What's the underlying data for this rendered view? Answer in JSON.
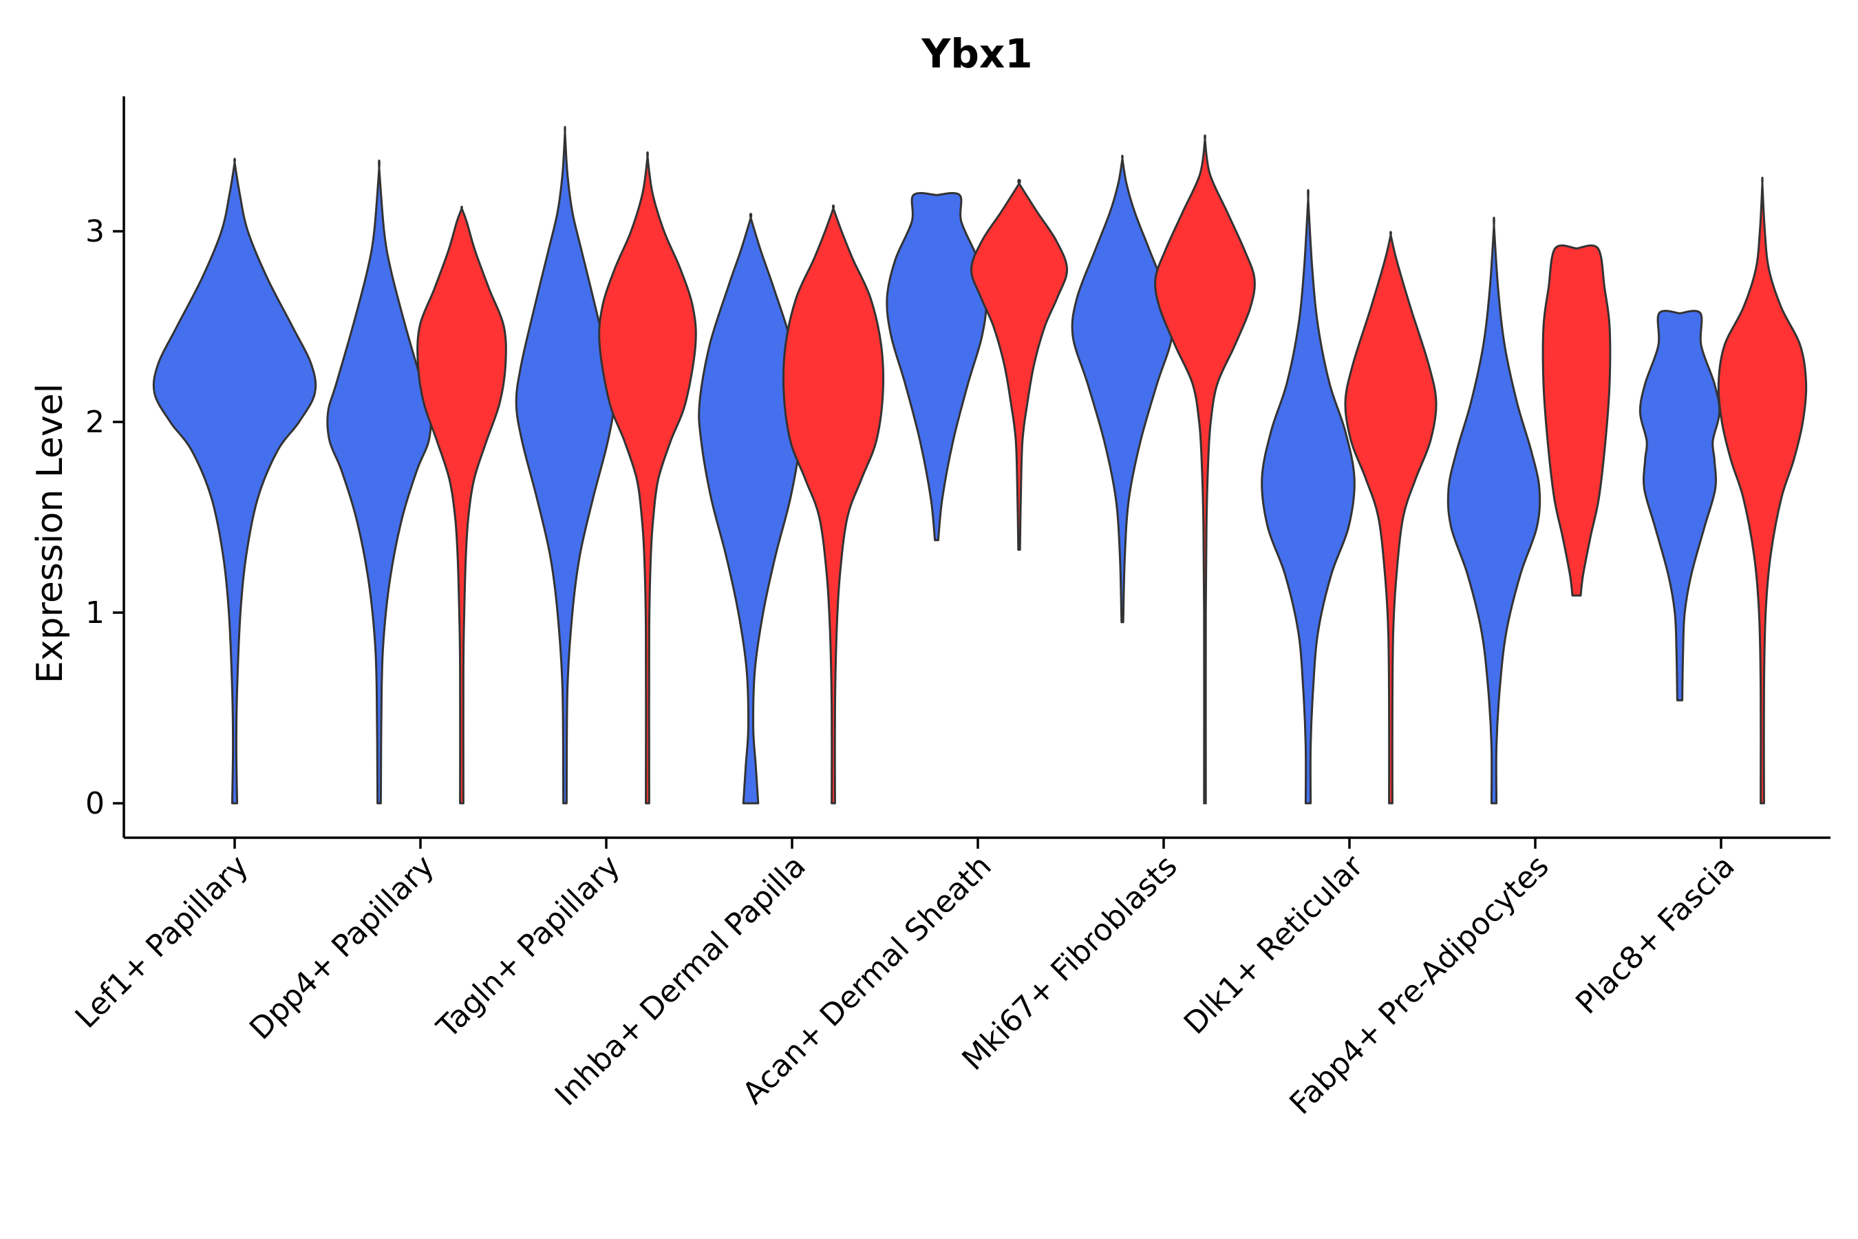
{
  "chart_data": {
    "type": "violin",
    "title": "Ybx1",
    "xlabel": "",
    "ylabel": "Expression Level",
    "ylim": [
      -0.18,
      3.7
    ],
    "yticks": [
      0,
      1,
      2,
      3
    ],
    "ytick_labels": [
      "0",
      "1",
      "2",
      "3"
    ],
    "categories": [
      "Lef1+ Papillary",
      "Dpp4+ Papillary",
      "Tagln+ Papillary",
      "Inhba+ Dermal Papilla",
      "Acan+ Dermal Sheath",
      "Mki67+ Fibroblasts",
      "Dlk1+ Reticular",
      "Fabp4+ Pre-Adipocytes",
      "Plac8+ Fascia"
    ],
    "series": [
      {
        "name": "group-blue",
        "color": "#4470ee",
        "violins": [
          {
            "category": 0,
            "min": 0.0,
            "max": 3.36,
            "profile": [
              [
                0.0,
                0.03
              ],
              [
                0.3,
                0.02
              ],
              [
                0.6,
                0.03
              ],
              [
                1.0,
                0.07
              ],
              [
                1.3,
                0.14
              ],
              [
                1.6,
                0.28
              ],
              [
                1.85,
                0.52
              ],
              [
                2.0,
                0.78
              ],
              [
                2.15,
                0.97
              ],
              [
                2.3,
                0.93
              ],
              [
                2.5,
                0.7
              ],
              [
                2.75,
                0.4
              ],
              [
                3.0,
                0.16
              ],
              [
                3.2,
                0.06
              ],
              [
                3.36,
                0.0
              ]
            ]
          },
          {
            "category": 1,
            "min": 0.0,
            "max": 3.33,
            "profile": [
              [
                0.0,
                0.02
              ],
              [
                0.6,
                0.03
              ],
              [
                0.9,
                0.06
              ],
              [
                1.2,
                0.14
              ],
              [
                1.5,
                0.28
              ],
              [
                1.75,
                0.46
              ],
              [
                1.9,
                0.6
              ],
              [
                2.05,
                0.62
              ],
              [
                2.2,
                0.52
              ],
              [
                2.5,
                0.32
              ],
              [
                2.8,
                0.14
              ],
              [
                3.0,
                0.06
              ],
              [
                3.33,
                0.0
              ]
            ]
          },
          {
            "category": 2,
            "min": 0.0,
            "max": 3.52,
            "profile": [
              [
                0.0,
                0.02
              ],
              [
                0.6,
                0.03
              ],
              [
                1.0,
                0.09
              ],
              [
                1.3,
                0.18
              ],
              [
                1.6,
                0.34
              ],
              [
                1.9,
                0.52
              ],
              [
                2.1,
                0.59
              ],
              [
                2.3,
                0.53
              ],
              [
                2.6,
                0.37
              ],
              [
                2.9,
                0.2
              ],
              [
                3.1,
                0.09
              ],
              [
                3.3,
                0.03
              ],
              [
                3.52,
                0.0
              ]
            ]
          },
          {
            "category": 3,
            "min": 0.0,
            "max": 3.07,
            "profile": [
              [
                0.0,
                0.09
              ],
              [
                0.2,
                0.06
              ],
              [
                0.4,
                0.03
              ],
              [
                0.7,
                0.05
              ],
              [
                1.0,
                0.15
              ],
              [
                1.3,
                0.3
              ],
              [
                1.6,
                0.48
              ],
              [
                1.9,
                0.6
              ],
              [
                2.1,
                0.62
              ],
              [
                2.4,
                0.5
              ],
              [
                2.7,
                0.28
              ],
              [
                2.9,
                0.12
              ],
              [
                3.07,
                0.0
              ]
            ]
          },
          {
            "category": 4,
            "min": 1.38,
            "max": 3.19,
            "profile": [
              [
                1.38,
                0.02
              ],
              [
                1.6,
                0.07
              ],
              [
                1.9,
                0.2
              ],
              [
                2.2,
                0.38
              ],
              [
                2.45,
                0.55
              ],
              [
                2.65,
                0.6
              ],
              [
                2.85,
                0.5
              ],
              [
                3.05,
                0.3
              ],
              [
                3.19,
                0.28
              ],
              [
                3.19,
                0.0
              ]
            ]
          },
          {
            "category": 5,
            "min": 0.95,
            "max": 3.38,
            "profile": [
              [
                0.95,
                0.01
              ],
              [
                1.3,
                0.03
              ],
              [
                1.6,
                0.08
              ],
              [
                1.9,
                0.22
              ],
              [
                2.2,
                0.42
              ],
              [
                2.45,
                0.6
              ],
              [
                2.65,
                0.55
              ],
              [
                2.9,
                0.33
              ],
              [
                3.1,
                0.15
              ],
              [
                3.25,
                0.05
              ],
              [
                3.38,
                0.0
              ]
            ]
          },
          {
            "category": 6,
            "min": 0.0,
            "max": 3.17,
            "profile": [
              [
                0.0,
                0.03
              ],
              [
                0.3,
                0.03
              ],
              [
                0.6,
                0.06
              ],
              [
                0.9,
                0.12
              ],
              [
                1.2,
                0.28
              ],
              [
                1.45,
                0.49
              ],
              [
                1.7,
                0.56
              ],
              [
                1.95,
                0.45
              ],
              [
                2.2,
                0.26
              ],
              [
                2.5,
                0.12
              ],
              [
                2.8,
                0.05
              ],
              [
                3.17,
                0.0
              ]
            ]
          },
          {
            "category": 7,
            "min": 0.0,
            "max": 3.03,
            "profile": [
              [
                0.0,
                0.03
              ],
              [
                0.3,
                0.03
              ],
              [
                0.6,
                0.07
              ],
              [
                0.9,
                0.15
              ],
              [
                1.2,
                0.32
              ],
              [
                1.45,
                0.52
              ],
              [
                1.65,
                0.55
              ],
              [
                1.85,
                0.45
              ],
              [
                2.1,
                0.28
              ],
              [
                2.4,
                0.13
              ],
              [
                2.7,
                0.05
              ],
              [
                3.03,
                0.0
              ]
            ]
          },
          {
            "category": 8,
            "min": 0.54,
            "max": 2.57,
            "profile": [
              [
                0.54,
                0.03
              ],
              [
                0.8,
                0.04
              ],
              [
                1.0,
                0.06
              ],
              [
                1.2,
                0.14
              ],
              [
                1.45,
                0.3
              ],
              [
                1.65,
                0.43
              ],
              [
                1.8,
                0.42
              ],
              [
                1.9,
                0.4
              ],
              [
                2.05,
                0.48
              ],
              [
                2.2,
                0.42
              ],
              [
                2.4,
                0.26
              ],
              [
                2.57,
                0.25
              ],
              [
                2.57,
                0.0
              ]
            ]
          }
        ]
      },
      {
        "name": "group-red",
        "color": "#ff3333",
        "violins": [
          {
            "category": 1,
            "min": 0.0,
            "max": 3.12,
            "profile": [
              [
                0.0,
                0.02
              ],
              [
                0.7,
                0.02
              ],
              [
                1.0,
                0.03
              ],
              [
                1.3,
                0.05
              ],
              [
                1.5,
                0.08
              ],
              [
                1.7,
                0.15
              ],
              [
                1.9,
                0.3
              ],
              [
                2.1,
                0.46
              ],
              [
                2.3,
                0.53
              ],
              [
                2.5,
                0.51
              ],
              [
                2.7,
                0.33
              ],
              [
                2.9,
                0.16
              ],
              [
                3.05,
                0.06
              ],
              [
                3.12,
                0.0
              ]
            ]
          },
          {
            "category": 2,
            "min": 0.0,
            "max": 3.39,
            "profile": [
              [
                0.0,
                0.02
              ],
              [
                0.9,
                0.02
              ],
              [
                1.3,
                0.04
              ],
              [
                1.5,
                0.07
              ],
              [
                1.7,
                0.13
              ],
              [
                1.9,
                0.28
              ],
              [
                2.1,
                0.46
              ],
              [
                2.4,
                0.58
              ],
              [
                2.6,
                0.55
              ],
              [
                2.8,
                0.4
              ],
              [
                3.0,
                0.2
              ],
              [
                3.2,
                0.06
              ],
              [
                3.39,
                0.0
              ]
            ]
          },
          {
            "category": 3,
            "min": 0.0,
            "max": 3.12,
            "profile": [
              [
                0.0,
                0.02
              ],
              [
                0.5,
                0.02
              ],
              [
                0.9,
                0.04
              ],
              [
                1.2,
                0.08
              ],
              [
                1.5,
                0.17
              ],
              [
                1.7,
                0.34
              ],
              [
                1.9,
                0.52
              ],
              [
                2.15,
                0.6
              ],
              [
                2.4,
                0.58
              ],
              [
                2.65,
                0.45
              ],
              [
                2.85,
                0.24
              ],
              [
                3.0,
                0.1
              ],
              [
                3.12,
                0.0
              ]
            ]
          },
          {
            "category": 4,
            "min": 1.33,
            "max": 3.25,
            "profile": [
              [
                1.33,
                0.01
              ],
              [
                1.6,
                0.02
              ],
              [
                1.9,
                0.04
              ],
              [
                2.1,
                0.1
              ],
              [
                2.3,
                0.18
              ],
              [
                2.5,
                0.31
              ],
              [
                2.65,
                0.46
              ],
              [
                2.8,
                0.58
              ],
              [
                2.95,
                0.45
              ],
              [
                3.1,
                0.22
              ],
              [
                3.25,
                0.0
              ]
            ]
          },
          {
            "category": 5,
            "min": 0.0,
            "max": 3.48,
            "profile": [
              [
                0.0,
                0.01
              ],
              [
                1.0,
                0.01
              ],
              [
                1.5,
                0.02
              ],
              [
                1.8,
                0.04
              ],
              [
                2.0,
                0.07
              ],
              [
                2.2,
                0.15
              ],
              [
                2.4,
                0.36
              ],
              [
                2.6,
                0.55
              ],
              [
                2.75,
                0.6
              ],
              [
                2.9,
                0.48
              ],
              [
                3.1,
                0.27
              ],
              [
                3.3,
                0.06
              ],
              [
                3.48,
                0.0
              ]
            ]
          },
          {
            "category": 6,
            "min": 0.0,
            "max": 2.98,
            "profile": [
              [
                0.0,
                0.02
              ],
              [
                0.5,
                0.02
              ],
              [
                0.9,
                0.03
              ],
              [
                1.2,
                0.07
              ],
              [
                1.5,
                0.15
              ],
              [
                1.7,
                0.3
              ],
              [
                1.9,
                0.48
              ],
              [
                2.1,
                0.55
              ],
              [
                2.3,
                0.46
              ],
              [
                2.6,
                0.24
              ],
              [
                2.85,
                0.07
              ],
              [
                2.98,
                0.0
              ]
            ]
          },
          {
            "category": 7,
            "min": 1.09,
            "max": 2.91,
            "profile": [
              [
                1.09,
                0.05
              ],
              [
                1.2,
                0.08
              ],
              [
                1.4,
                0.17
              ],
              [
                1.6,
                0.27
              ],
              [
                1.9,
                0.35
              ],
              [
                2.2,
                0.4
              ],
              [
                2.5,
                0.4
              ],
              [
                2.7,
                0.34
              ],
              [
                2.91,
                0.26
              ],
              [
                2.91,
                0.0
              ]
            ]
          },
          {
            "category": 8,
            "min": 0.0,
            "max": 3.25,
            "profile": [
              [
                0.0,
                0.02
              ],
              [
                0.6,
                0.02
              ],
              [
                1.0,
                0.04
              ],
              [
                1.3,
                0.1
              ],
              [
                1.6,
                0.23
              ],
              [
                1.8,
                0.38
              ],
              [
                2.0,
                0.49
              ],
              [
                2.2,
                0.53
              ],
              [
                2.4,
                0.46
              ],
              [
                2.6,
                0.23
              ],
              [
                2.8,
                0.08
              ],
              [
                3.0,
                0.03
              ],
              [
                3.25,
                0.0
              ]
            ]
          }
        ]
      }
    ],
    "legend": "none"
  }
}
